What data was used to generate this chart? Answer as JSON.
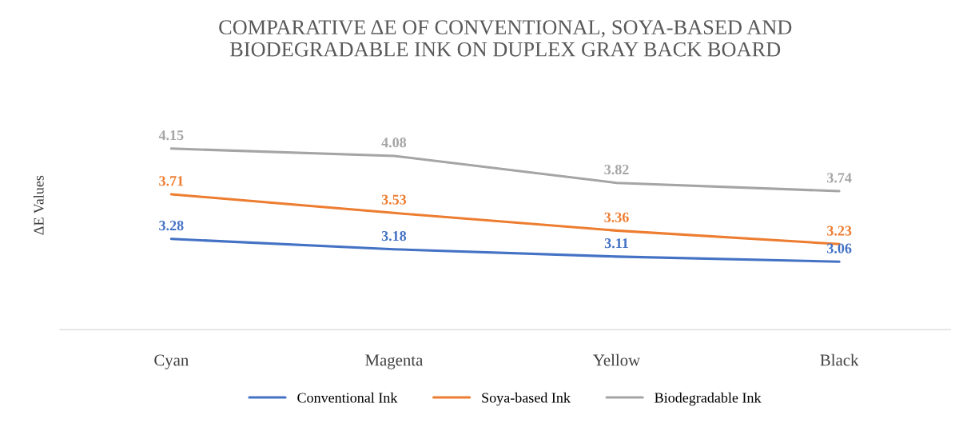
{
  "chart_data": {
    "type": "line",
    "title": "COMPARATIVE ΔE OF CONVENTIONAL, SOYA-BASED AND\nBIODEGRADABLE INK ON DUPLEX GRAY BACK BOARD",
    "ylabel": "ΔE Values",
    "categories": [
      "Cyan",
      "Magenta",
      "Yellow",
      "Black"
    ],
    "series": [
      {
        "name": "Conventional Ink",
        "color": "#4472c4",
        "values": [
          3.28,
          3.18,
          3.11,
          3.06
        ]
      },
      {
        "name": "Soya-based Ink",
        "color": "#ed7d31",
        "values": [
          3.71,
          3.53,
          3.36,
          3.23
        ]
      },
      {
        "name": "Biodegradable Ink",
        "color": "#a5a5a5",
        "values": [
          4.15,
          4.08,
          3.82,
          3.74
        ]
      }
    ],
    "tick_labels": "x",
    "data_labels": true,
    "legend": "bottom",
    "grid": false,
    "line_style": "solid"
  }
}
